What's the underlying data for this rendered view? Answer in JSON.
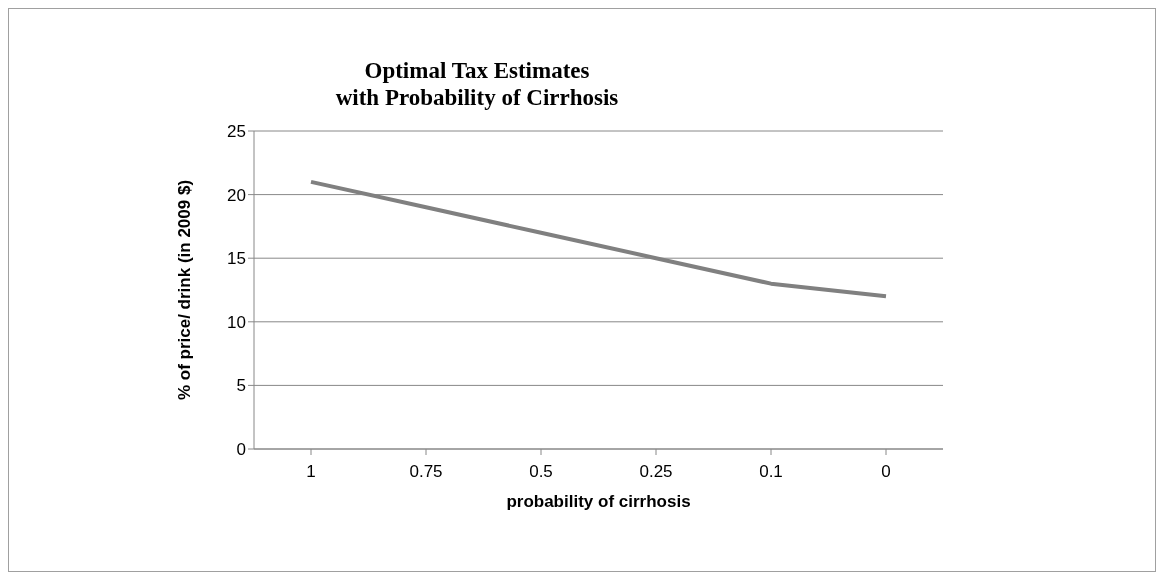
{
  "chart_data": {
    "type": "line",
    "title": "Optimal Tax Estimates\nwith Probability of Cirrhosis",
    "xlabel": "probability of cirrhosis",
    "ylabel": "% of price/ drink (in 2009 $)",
    "categories": [
      "1",
      "0.75",
      "0.5",
      "0.25",
      "0.1",
      "0"
    ],
    "series": [
      {
        "color": "#808080",
        "values": [
          21,
          19,
          17,
          15,
          13,
          12
        ]
      }
    ],
    "ylim": [
      0,
      25
    ],
    "yticks": [
      0,
      5,
      10,
      15,
      20,
      25
    ],
    "grid": "y",
    "marker": "none",
    "line_style": "solid"
  }
}
